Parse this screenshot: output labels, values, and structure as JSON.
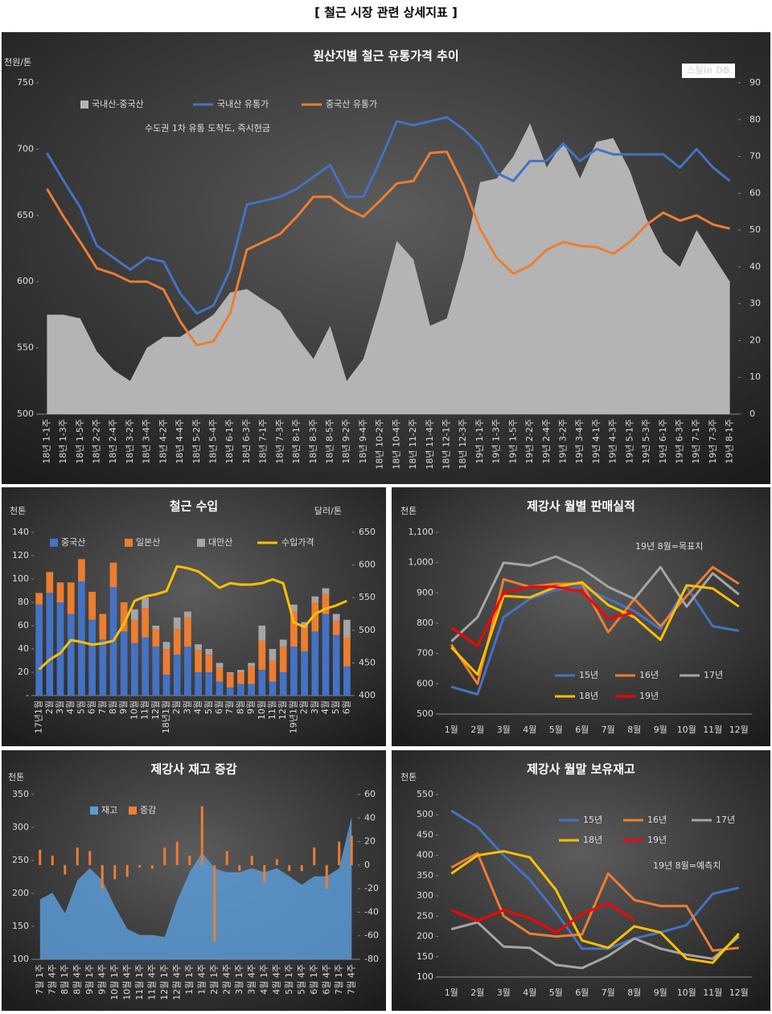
{
  "header": {
    "title": "[ 철근 시장 관련 상세지표 ]"
  },
  "chart_data": [
    {
      "type": "line",
      "title": "원산지별 철근 유통가격 추이",
      "y_label": "천원/톤",
      "source_logo": "스틸in DB",
      "annotation": "수도권 1차 유통 도착도, 즉시현금",
      "categories": [
        "18년 1-1주",
        "18년 1-3주",
        "18년 1-5주",
        "18년 2-2주",
        "18년 2-4주",
        "18년 3-2주",
        "18년 3-4주",
        "18년 4-2주",
        "18년 4-4주",
        "18년 5-2주",
        "18년 5-4주",
        "18년 6-1주",
        "18년 6-3주",
        "18년 7-1주",
        "18년 7-3주",
        "18년 8-1주",
        "18년 8-3주",
        "18년 8-5주",
        "18년 9-2주",
        "18년 9-4주",
        "18년 10-2주",
        "18년 10-4주",
        "18년 11-2주",
        "18년 11-4주",
        "18년 12-1주",
        "18년 12-3주",
        "19년 1-1주",
        "19년 1-3주",
        "19년 1-5주",
        "19년 2-2주",
        "19년 2-4주",
        "19년 3-2주",
        "19년 3-4주",
        "19년 4-1주",
        "19년 4-3주",
        "19년 5-1주",
        "19년 5-3주",
        "19년 6-1주",
        "19년 6-3주",
        "19년 7-1주",
        "19년 7-3주",
        "19년 8-1주"
      ],
      "series": [
        {
          "name": "국내산-중국산",
          "kind": "area",
          "axis": "y2",
          "color": "#b4b4b4",
          "values": [
            27,
            27,
            26,
            17,
            12,
            9,
            18,
            21,
            21,
            24,
            27,
            33,
            34,
            31,
            28,
            21,
            15,
            24,
            9,
            15,
            30,
            47,
            42,
            24,
            26,
            42,
            63,
            64,
            70,
            79,
            67,
            74,
            64,
            74,
            75,
            66,
            53,
            44,
            40,
            50,
            43,
            36
          ]
        },
        {
          "name": "국내산 유통가",
          "kind": "line",
          "color": "#4472c4",
          "values": [
            697,
            676,
            656,
            627,
            618,
            609,
            618,
            615,
            591,
            576,
            582,
            609,
            658,
            661,
            664,
            670,
            679,
            688,
            664,
            664,
            691,
            721,
            718,
            721,
            724,
            715,
            703,
            682,
            676,
            691,
            691,
            704,
            691,
            700,
            696,
            696,
            696,
            696,
            686,
            700,
            686,
            676
          ]
        },
        {
          "name": "중국산 유통가",
          "kind": "line",
          "color": "#ed7d31",
          "values": [
            670,
            649,
            630,
            610,
            606,
            600,
            600,
            594,
            570,
            552,
            555,
            576,
            624,
            630,
            636,
            649,
            664,
            664,
            655,
            649,
            661,
            674,
            676,
            697,
            698,
            673,
            640,
            618,
            606,
            612,
            624,
            630,
            627,
            626,
            621,
            630,
            643,
            652,
            646,
            650,
            643,
            640
          ]
        }
      ],
      "ylim": [
        500,
        750
      ],
      "yticks": [
        500,
        550,
        600,
        650,
        700,
        750
      ],
      "y2lim": [
        0,
        90
      ],
      "y2ticks": [
        0,
        10,
        20,
        30,
        40,
        50,
        60,
        70,
        80,
        90
      ],
      "grid": false
    },
    {
      "type": "bar",
      "stacked": true,
      "title": "철근 수입",
      "y_label": "천톤",
      "y2_label": "달러/톤",
      "categories": [
        "17년1월",
        "2월",
        "3월",
        "4월",
        "5월",
        "6월",
        "7월",
        "8월",
        "9월",
        "10월",
        "11월",
        "12월",
        "18년1월",
        "2월",
        "3월",
        "4월",
        "5월",
        "6월",
        "7월",
        "8월",
        "9월",
        "10월",
        "11월",
        "12월",
        "19년1월",
        "2월",
        "3월",
        "4월",
        "5월",
        "6월"
      ],
      "series": [
        {
          "name": "중국산",
          "kind": "bar",
          "color": "#4472c4",
          "values": [
            78,
            88,
            80,
            70,
            98,
            65,
            48,
            93,
            55,
            45,
            50,
            42,
            18,
            35,
            42,
            20,
            20,
            12,
            7,
            10,
            10,
            22,
            12,
            20,
            42,
            38,
            55,
            70,
            52,
            25
          ]
        },
        {
          "name": "일본산",
          "kind": "bar",
          "color": "#ed7d31",
          "values": [
            10,
            18,
            17,
            27,
            19,
            24,
            22,
            21,
            25,
            20,
            25,
            15,
            22,
            22,
            25,
            19,
            15,
            12,
            12,
            10,
            15,
            25,
            18,
            22,
            30,
            20,
            25,
            17,
            12,
            25
          ]
        },
        {
          "name": "대만산",
          "kind": "bar",
          "color": "#a5a5a5",
          "values": [
            0,
            0,
            0,
            0,
            0,
            0,
            0,
            0,
            0,
            9,
            9,
            3,
            6,
            10,
            5,
            5,
            5,
            4,
            1,
            2,
            3,
            13,
            10,
            6,
            6,
            5,
            5,
            5,
            6,
            15
          ]
        },
        {
          "name": "수입가격",
          "kind": "line",
          "axis": "y2",
          "color": "#ffc000",
          "values": [
            440,
            455,
            465,
            485,
            482,
            478,
            480,
            484,
            510,
            545,
            552,
            555,
            560,
            598,
            595,
            590,
            578,
            565,
            572,
            570,
            570,
            572,
            578,
            572,
            512,
            505,
            525,
            533,
            538,
            545
          ]
        }
      ],
      "ylim": [
        0,
        140
      ],
      "yticks": [
        {
          "value": 0,
          "label": "-"
        },
        20,
        40,
        60,
        80,
        100,
        120,
        140
      ],
      "y2lim": [
        400,
        650
      ],
      "y2ticks": [
        400,
        450,
        500,
        550,
        600,
        650
      ],
      "grid": false
    },
    {
      "type": "line",
      "title": "제강사 월별 판매실적",
      "y_label": "천톤",
      "annotation": "19년 8월=목표치",
      "categories": [
        "1월",
        "2월",
        "3월",
        "4월",
        "5월",
        "6월",
        "7월",
        "8월",
        "9월",
        "10월",
        "11월",
        "12월"
      ],
      "series": [
        {
          "name": "15년",
          "kind": "line",
          "color": "#4472c4",
          "values": [
            590,
            565,
            820,
            880,
            910,
            920,
            880,
            840,
            780,
            920,
            790,
            775
          ]
        },
        {
          "name": "16년",
          "kind": "line",
          "color": "#ed7d31",
          "values": [
            730,
            600,
            945,
            920,
            930,
            930,
            770,
            880,
            790,
            890,
            985,
            930
          ]
        },
        {
          "name": "17년",
          "kind": "line",
          "color": "#a5a5a5",
          "values": [
            740,
            820,
            1000,
            990,
            1020,
            980,
            920,
            880,
            985,
            855,
            965,
            895
          ]
        },
        {
          "name": "18년",
          "kind": "line",
          "color": "#ffc000",
          "values": [
            720,
            630,
            890,
            885,
            920,
            935,
            860,
            820,
            745,
            925,
            915,
            855
          ]
        },
        {
          "name": "19년",
          "kind": "line",
          "color": "#ff0000",
          "values": [
            785,
            725,
            900,
            920,
            920,
            905,
            815,
            835,
            null,
            null,
            null,
            null
          ]
        }
      ],
      "ylim": [
        500,
        1100
      ],
      "yticks": [
        500,
        600,
        700,
        800,
        900,
        {
          "value": 1000,
          "label": "1,000"
        },
        {
          "value": 1100,
          "label": "1,100"
        }
      ],
      "grid": false
    },
    {
      "type": "area",
      "title": "제강사 재고 증감",
      "y_label": "천톤",
      "categories": [
        "7월 1주",
        "7월 4주",
        "8월 1주",
        "8월 4주",
        "9월 1주",
        "9월 4주",
        "10월 1주",
        "10월 4주",
        "11월 1주",
        "11월 4주",
        "12월 1주",
        "12월 4주",
        "1월 1주",
        "1월 4주",
        "2월 1주",
        "2월 4주",
        "3월 1주",
        "3월 4주",
        "4월 1주",
        "4월 4주",
        "5월 1주",
        "5월 4주",
        "6월 1주",
        "6월 4주",
        "7월 1주",
        "7월 4주"
      ],
      "series": [
        {
          "name": "재고",
          "kind": "area",
          "color": "#5b9bd5",
          "values": [
            191,
            201,
            170,
            220,
            238,
            220,
            180,
            146,
            137,
            137,
            134,
            189,
            232,
            262,
            238,
            232,
            232,
            238,
            232,
            238,
            226,
            213,
            226,
            226,
            238,
            317
          ]
        },
        {
          "name": "증감",
          "kind": "bar",
          "axis": "y2",
          "color": "#ed7d31",
          "values": [
            13,
            8,
            -8,
            15,
            12,
            -20,
            -12,
            -10,
            -2,
            -3,
            15,
            20,
            8,
            50,
            -65,
            12,
            -5,
            8,
            -15,
            5,
            -5,
            -5,
            15,
            -20,
            20,
            25
          ]
        }
      ],
      "ylim": [
        100,
        350
      ],
      "yticks": [
        100,
        150,
        200,
        250,
        300,
        350
      ],
      "y2lim": [
        -80,
        60
      ],
      "y2ticks": [
        -80,
        -60,
        -40,
        -20,
        0,
        20,
        40,
        60
      ],
      "grid": false
    },
    {
      "type": "line",
      "title": "제강사 월말 보유재고",
      "y_label": "천톤",
      "annotation": "19년 8월=예측치",
      "categories": [
        "1월",
        "2월",
        "3월",
        "4월",
        "5월",
        "6월",
        "7월",
        "8월",
        "9월",
        "10월",
        "11월",
        "12월"
      ],
      "series": [
        {
          "name": "15년",
          "kind": "line",
          "color": "#4472c4",
          "values": [
            510,
            470,
            400,
            340,
            260,
            170,
            170,
            195,
            210,
            228,
            305,
            320
          ]
        },
        {
          "name": "16년",
          "kind": "line",
          "color": "#ed7d31",
          "values": [
            370,
            405,
            250,
            207,
            200,
            205,
            355,
            290,
            275,
            275,
            165,
            172
          ]
        },
        {
          "name": "17년",
          "kind": "line",
          "color": "#a5a5a5",
          "values": [
            218,
            235,
            175,
            172,
            130,
            122,
            152,
            195,
            170,
            155,
            145,
            200
          ]
        },
        {
          "name": "18년",
          "kind": "line",
          "color": "#ffc000",
          "values": [
            355,
            400,
            410,
            395,
            315,
            190,
            172,
            225,
            210,
            145,
            135,
            207
          ]
        },
        {
          "name": "19년",
          "kind": "line",
          "color": "#ff0000",
          "values": [
            265,
            238,
            265,
            245,
            210,
            255,
            282,
            240,
            null,
            null,
            null,
            null
          ]
        }
      ],
      "ylim": [
        100,
        550
      ],
      "yticks": [
        100,
        150,
        200,
        250,
        300,
        350,
        400,
        450,
        500,
        550
      ],
      "grid": false
    }
  ]
}
